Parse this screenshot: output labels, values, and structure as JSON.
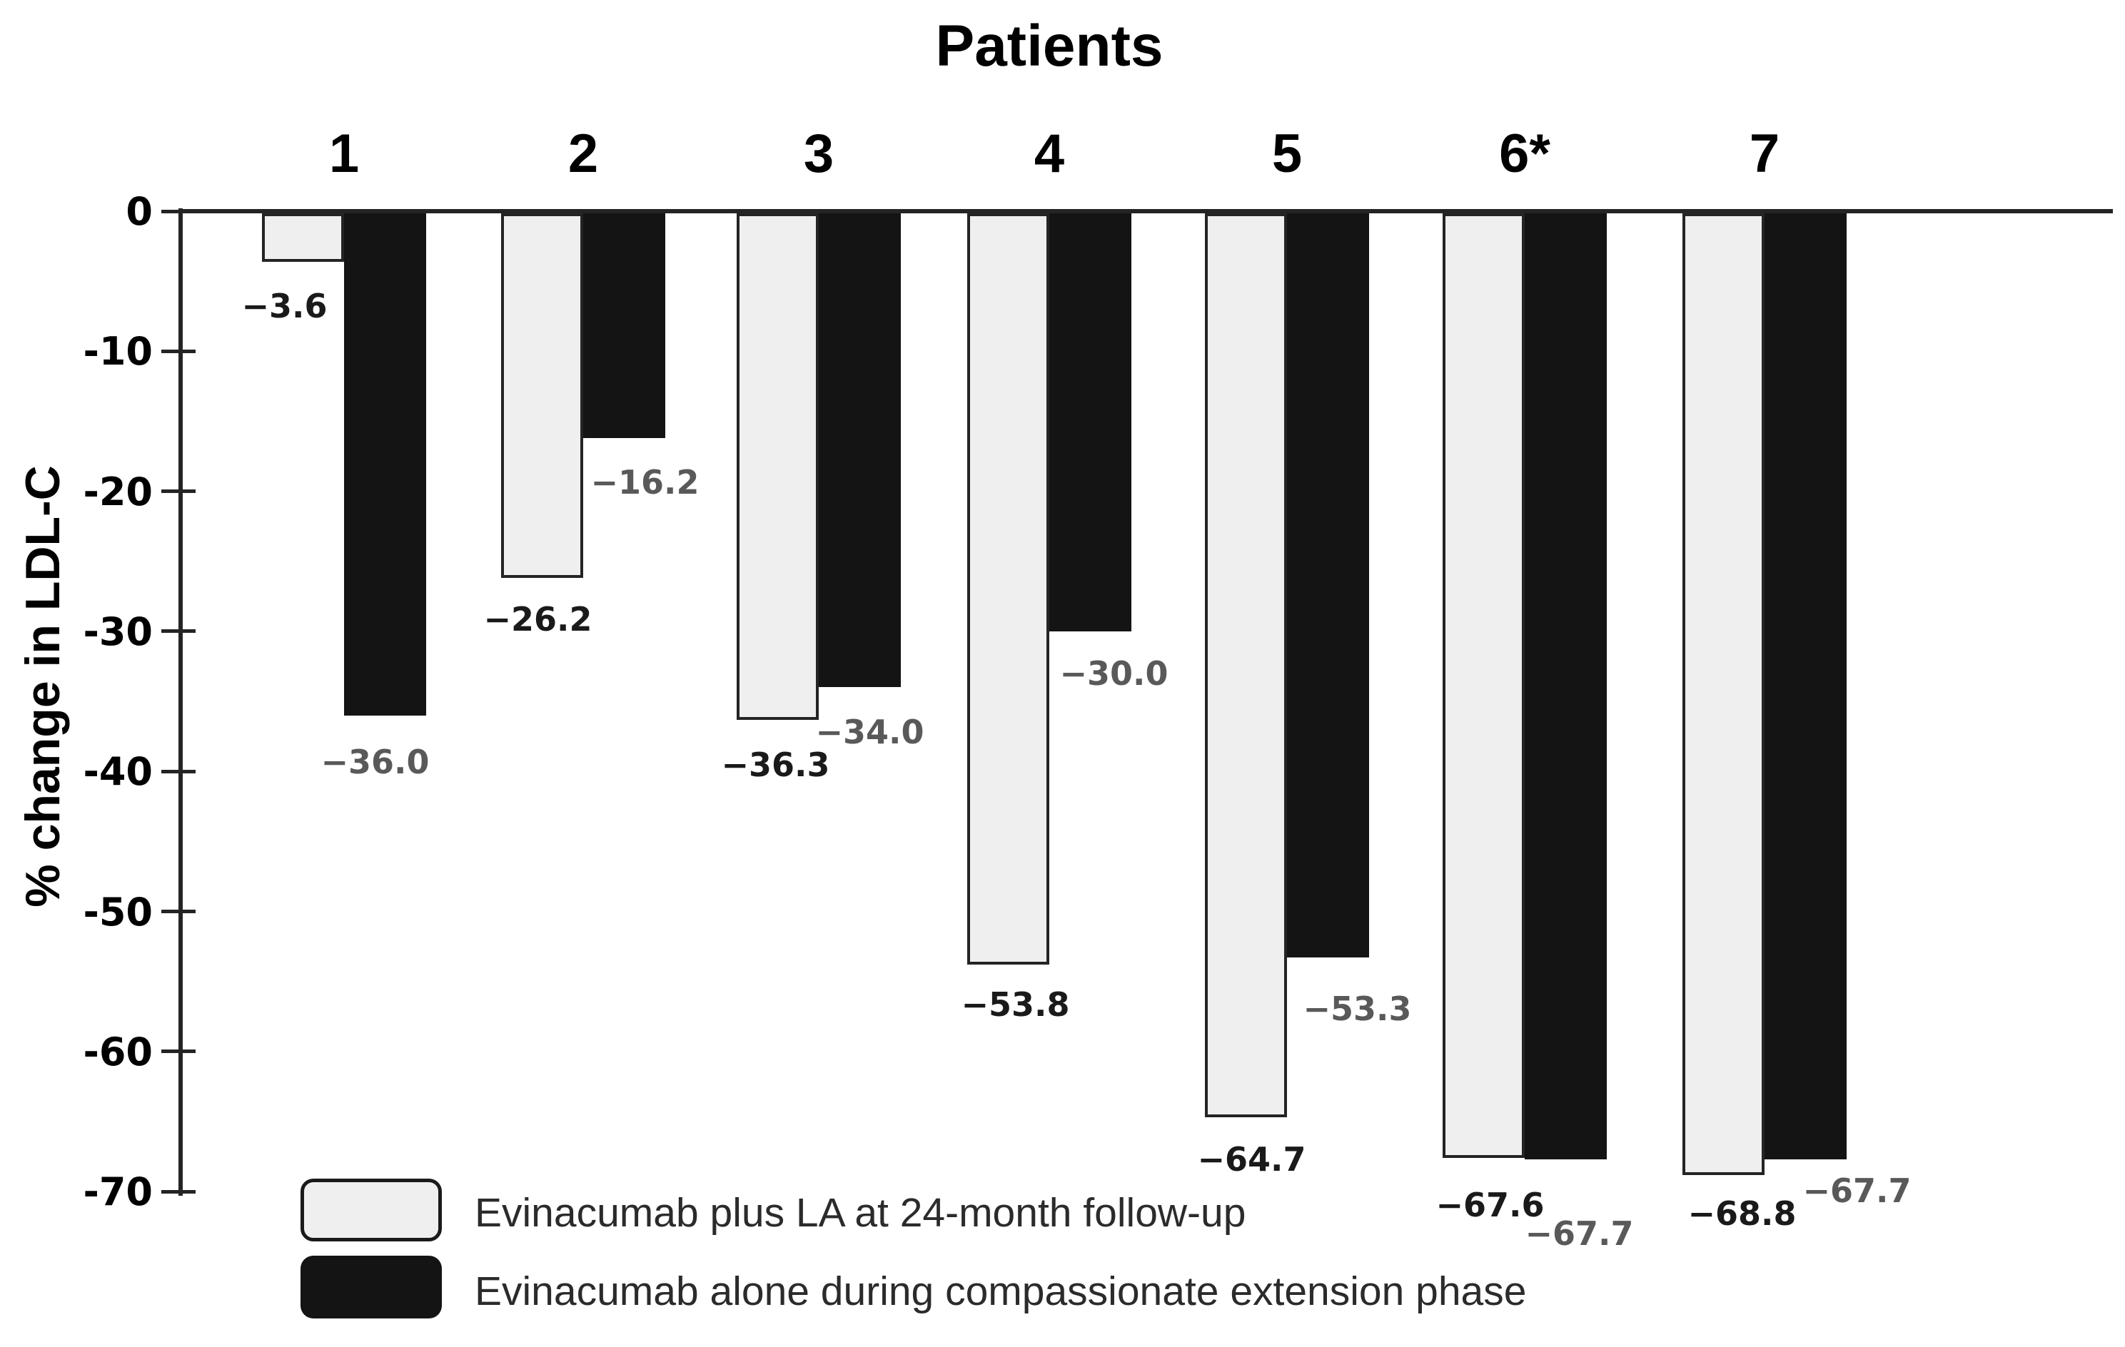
{
  "chart_data": {
    "type": "bar",
    "title": "Patients",
    "xlabel": "",
    "ylabel": "% change in LDL-C",
    "categories": [
      "1",
      "2",
      "3",
      "4",
      "5",
      "6*",
      "7"
    ],
    "series": [
      {
        "name": "Evinacumab plus LA at 24-month follow-up",
        "color": "#efefef",
        "values": [
          -3.6,
          -26.2,
          -36.3,
          -53.8,
          -64.7,
          -67.6,
          -68.8
        ],
        "labels": [
          "−3.6",
          "−26.2",
          "−36.3",
          "−53.8",
          "−64.7",
          "−67.6",
          "−68.8"
        ]
      },
      {
        "name": "Evinacumab alone during compassionate extension phase",
        "color": "#141414",
        "values": [
          -36.0,
          -16.2,
          -34.0,
          -30.0,
          -53.3,
          -67.7,
          -67.7
        ],
        "labels": [
          "−36.0",
          "−16.2",
          "−34.0",
          "−30.0",
          "−53.3",
          "−67.7",
          "−67.7"
        ]
      }
    ],
    "y_ticks": [
      "0",
      "-10",
      "-20",
      "-30",
      "-40",
      "-50",
      "-60",
      "-70"
    ],
    "ylim": [
      0,
      -70
    ],
    "grid": false,
    "legend_position": "bottom-left",
    "value_label_colors": {
      "series0": "#1a1a1a",
      "series1": "#595959"
    }
  }
}
